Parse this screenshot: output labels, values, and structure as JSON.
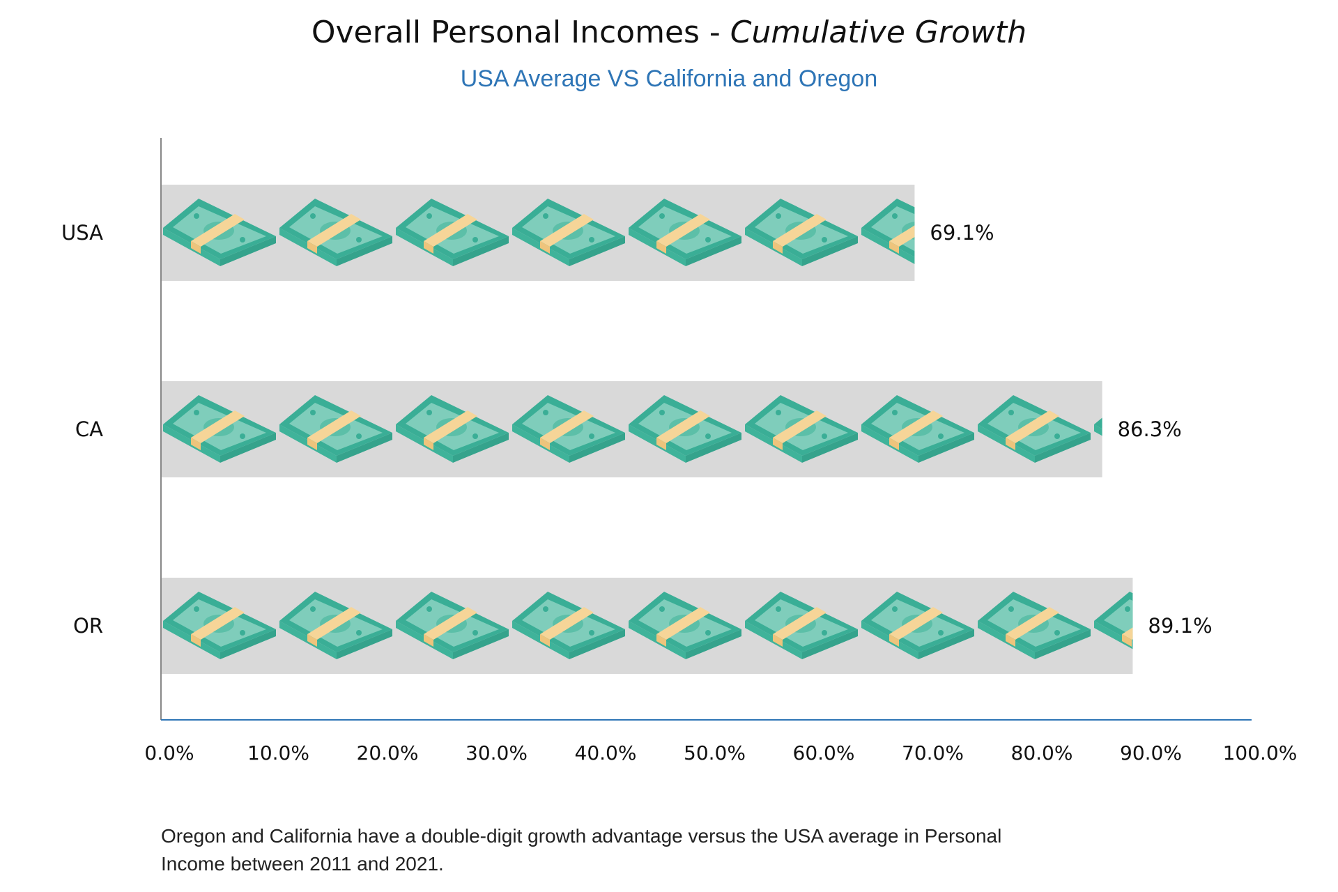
{
  "chart_data": {
    "type": "bar",
    "orientation": "horizontal",
    "title_main": "Overall Personal Incomes - ",
    "title_emphasis": "Cumulative Growth",
    "subtitle": "USA Average VS California and Oregon",
    "categories": [
      "USA",
      "CA",
      "OR"
    ],
    "values": [
      69.1,
      86.3,
      89.1
    ],
    "value_labels": [
      "69.1%",
      "86.3%",
      "89.1%"
    ],
    "xlim": [
      0,
      100
    ],
    "x_ticks": [
      0,
      10,
      20,
      30,
      40,
      50,
      60,
      70,
      80,
      90,
      100
    ],
    "x_tick_labels": [
      "0.0%",
      "10.0%",
      "20.0%",
      "30.0%",
      "40.0%",
      "50.0%",
      "60.0%",
      "70.0%",
      "80.0%",
      "90.0%",
      "100.0%"
    ],
    "grid": false,
    "mark_icon": "money-stack-icon"
  },
  "caption": "Oregon and California have a double-digit growth advantage versus the USA average in Personal Income between 2011 and 2021.",
  "colors": {
    "bar_background": "#d9d9d9",
    "money_dark": "#3aae96",
    "money_light": "#7fcdbb",
    "money_band": "#f6d598",
    "subtitle": "#2e75b6",
    "x_axis": "#2e75b6",
    "y_axis": "#888888"
  }
}
